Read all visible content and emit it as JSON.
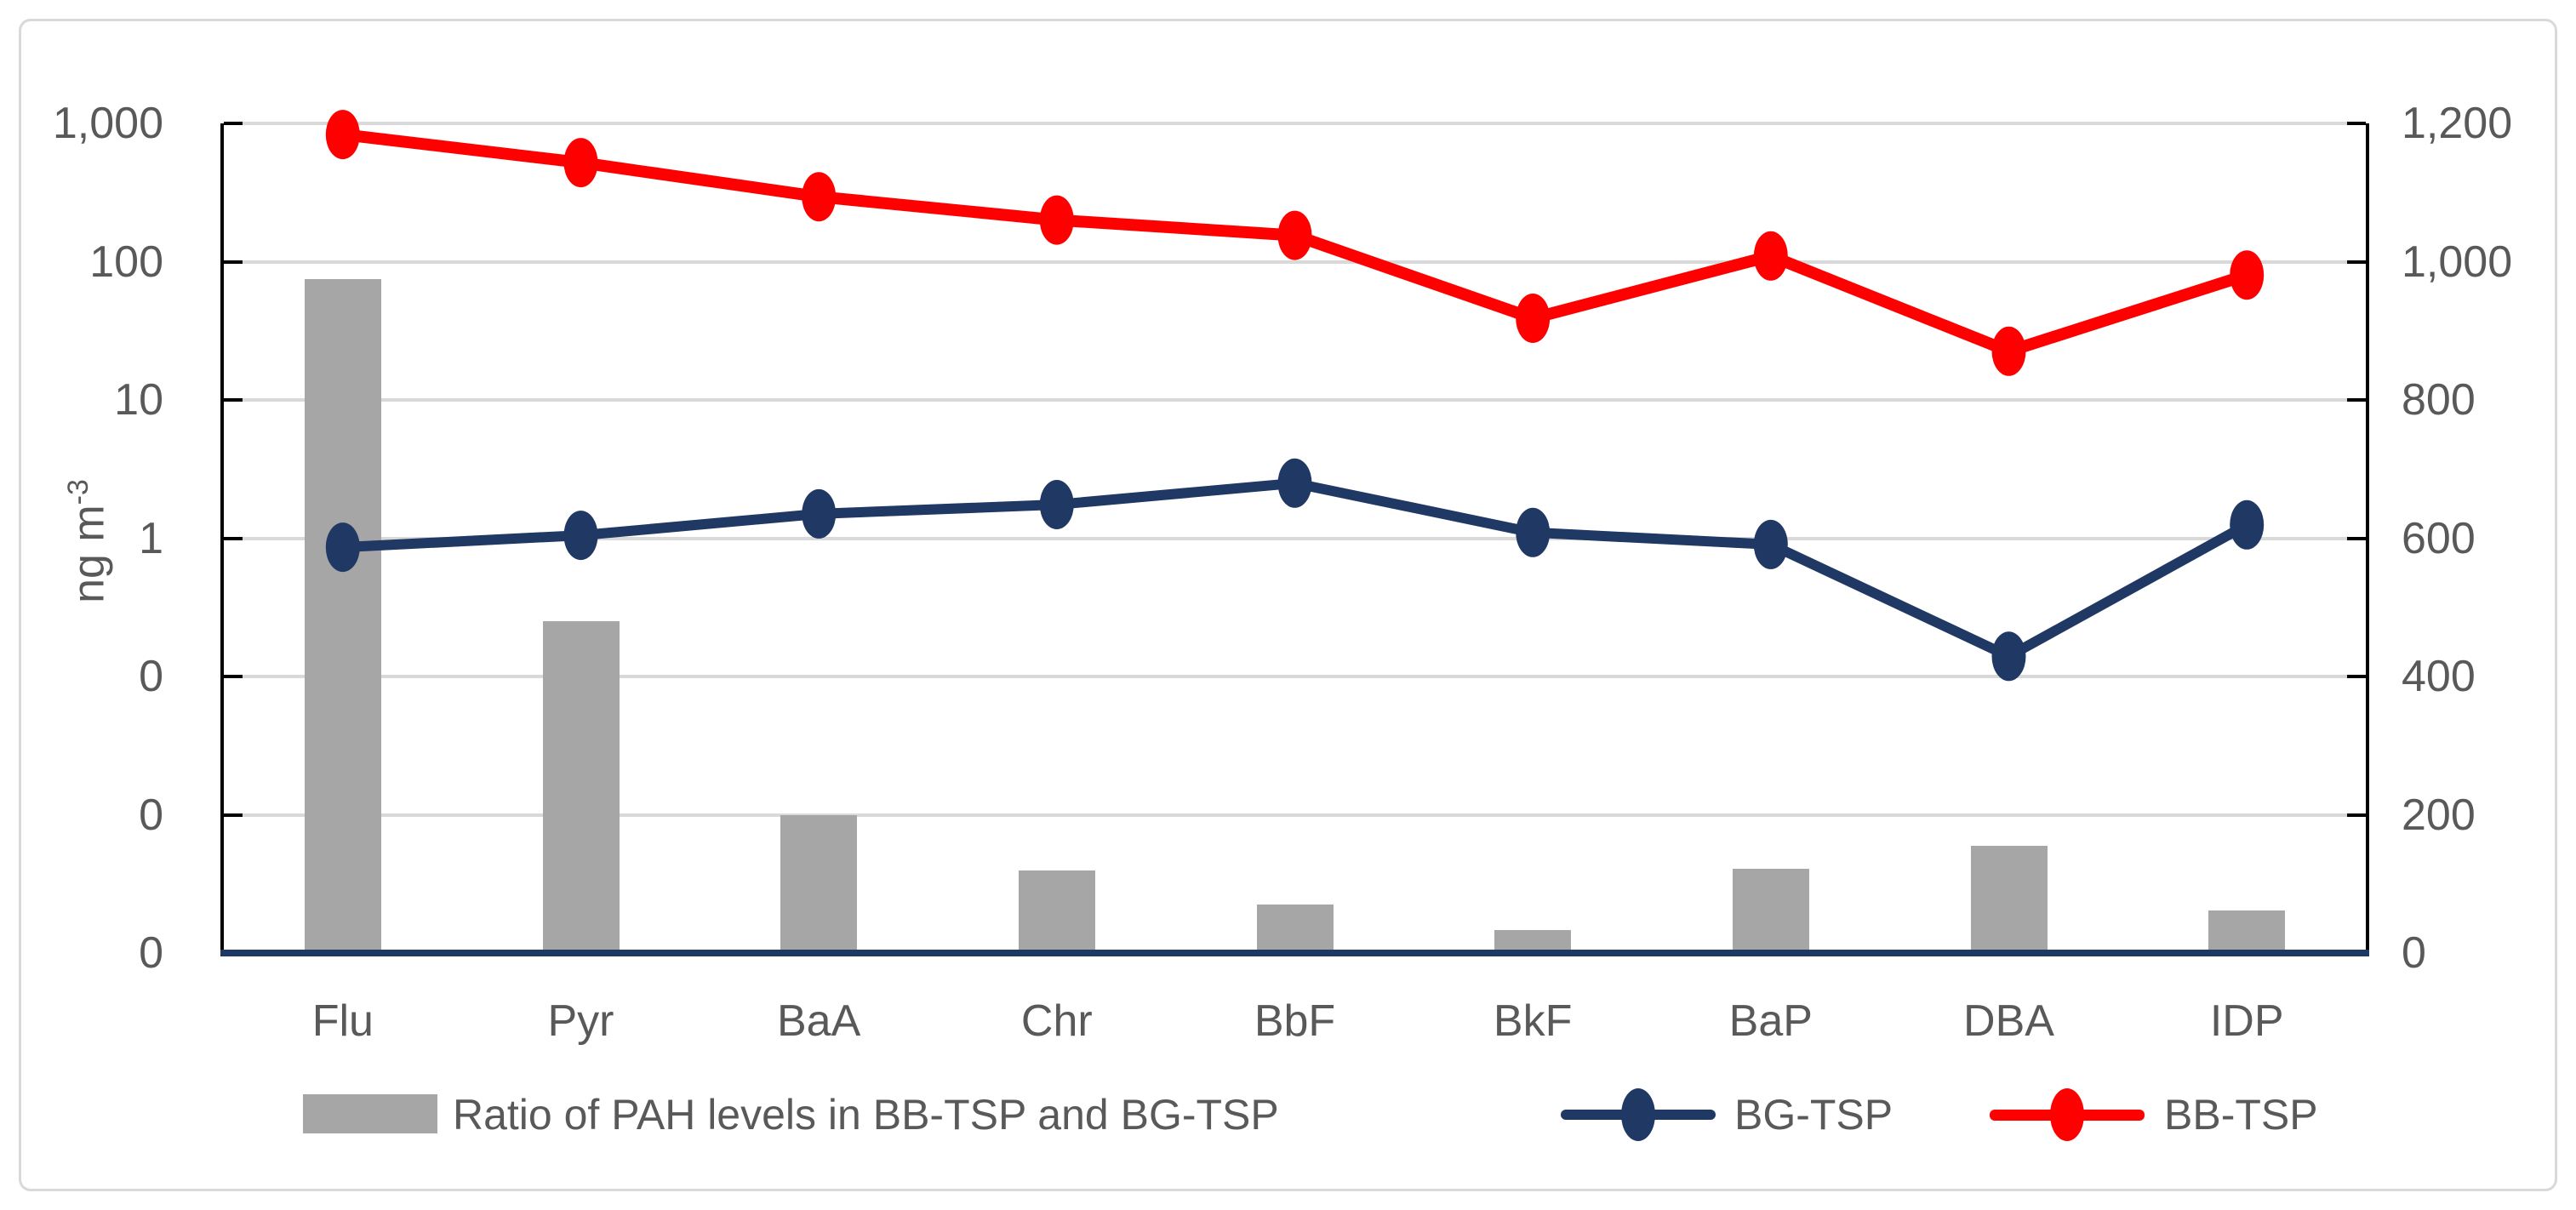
{
  "chart_data": {
    "type": "combo (bar + 2 lines, dual axis)",
    "title": "",
    "categories": [
      "Flu",
      "Pyr",
      "BaA",
      "Chr",
      "BbF",
      "BkF",
      "BaP",
      "DBA",
      "IDP"
    ],
    "series": [
      {
        "name": "Ratio of PAH levels in BB-TSP and BG-TSP",
        "chart_type": "bar",
        "axis": "right",
        "color": "#a6a6a6",
        "values": [
          975,
          480,
          200,
          120,
          70,
          33,
          122,
          155,
          62
        ]
      },
      {
        "name": "BG-TSP",
        "chart_type": "line",
        "axis": "left",
        "color": "#1f3864",
        "values": [
          0.86,
          1.05,
          1.5,
          1.75,
          2.5,
          1.1,
          0.9,
          0.14,
          1.25
        ]
      },
      {
        "name": "BB-TSP",
        "chart_type": "line",
        "axis": "left",
        "color": "#ff0000",
        "values": [
          830,
          520,
          295,
          200,
          155,
          39,
          110,
          22.5,
          80
        ]
      }
    ],
    "left_axis": {
      "title_base": "ng m",
      "title_sup": "-3",
      "scale": "log",
      "max": 1000,
      "min": 0.001,
      "tick_labels": [
        "1,000",
        "100",
        "10",
        "1",
        "0",
        "0",
        "0"
      ]
    },
    "right_axis": {
      "scale": "linear",
      "max": 1200,
      "min": 0,
      "tick_labels": [
        "1,200",
        "1,000",
        "800",
        "600",
        "400",
        "200",
        "0"
      ]
    },
    "grid": true,
    "legend_position": "bottom",
    "colors": {
      "gridline": "#d9d9d9",
      "axis_text": "#595959",
      "category_axis_line": "#1f3864",
      "value_axis_line": "#000000"
    }
  }
}
